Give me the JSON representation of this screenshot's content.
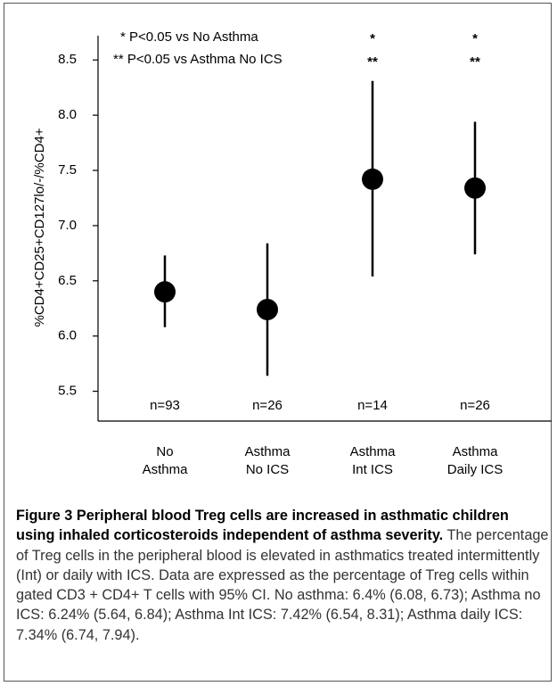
{
  "chart_data": {
    "type": "pointrange",
    "ylabel": "%CD4+CD25+CD127lo/-/%CD4+",
    "categories": [
      [
        "No",
        "Asthma"
      ],
      [
        "Asthma",
        "No ICS"
      ],
      [
        "Asthma",
        "Int ICS"
      ],
      [
        "Asthma",
        "Daily ICS"
      ]
    ],
    "values": [
      6.4,
      6.24,
      7.42,
      7.34
    ],
    "ci_low": [
      6.08,
      5.64,
      6.54,
      6.74
    ],
    "ci_high": [
      6.73,
      6.84,
      8.31,
      7.94
    ],
    "n_labels": [
      "n=93",
      "n=26",
      "n=14",
      "n=26"
    ],
    "significance": [
      [],
      [],
      [
        "*",
        "**"
      ],
      [
        "*",
        "**"
      ]
    ],
    "notes": [
      "* P<0.05 vs No Asthma",
      "** P<0.05 vs Asthma No ICS"
    ],
    "color": "#000000",
    "ylim": [
      5.23,
      8.72
    ],
    "yticks": [
      5.5,
      {
        "value": 6,
        "label": "6.0"
      },
      6.5,
      {
        "value": 7,
        "label": "7.0"
      },
      7.5,
      {
        "value": 8,
        "label": "8.0"
      },
      8.5
    ]
  },
  "caption": {
    "title": "Figure 3 Peripheral blood Treg cells are increased in asthmatic children using inhaled corticosteroids independent of asthma severity.",
    "text": "The percentage of Treg cells in the peripheral blood is elevated in asthmatics treated intermittently (Int) or daily with ICS. Data are expressed as the percentage of Treg cells within gated CD3 + CD4+ T cells with 95% CI. No asthma: 6.4% (6.08, 6.73); Asthma no ICS: 6.24% (5.64, 6.84); Asthma Int ICS: 7.42% (6.54, 8.31); Asthma daily ICS: 7.34% (6.74, 7.94)."
  }
}
